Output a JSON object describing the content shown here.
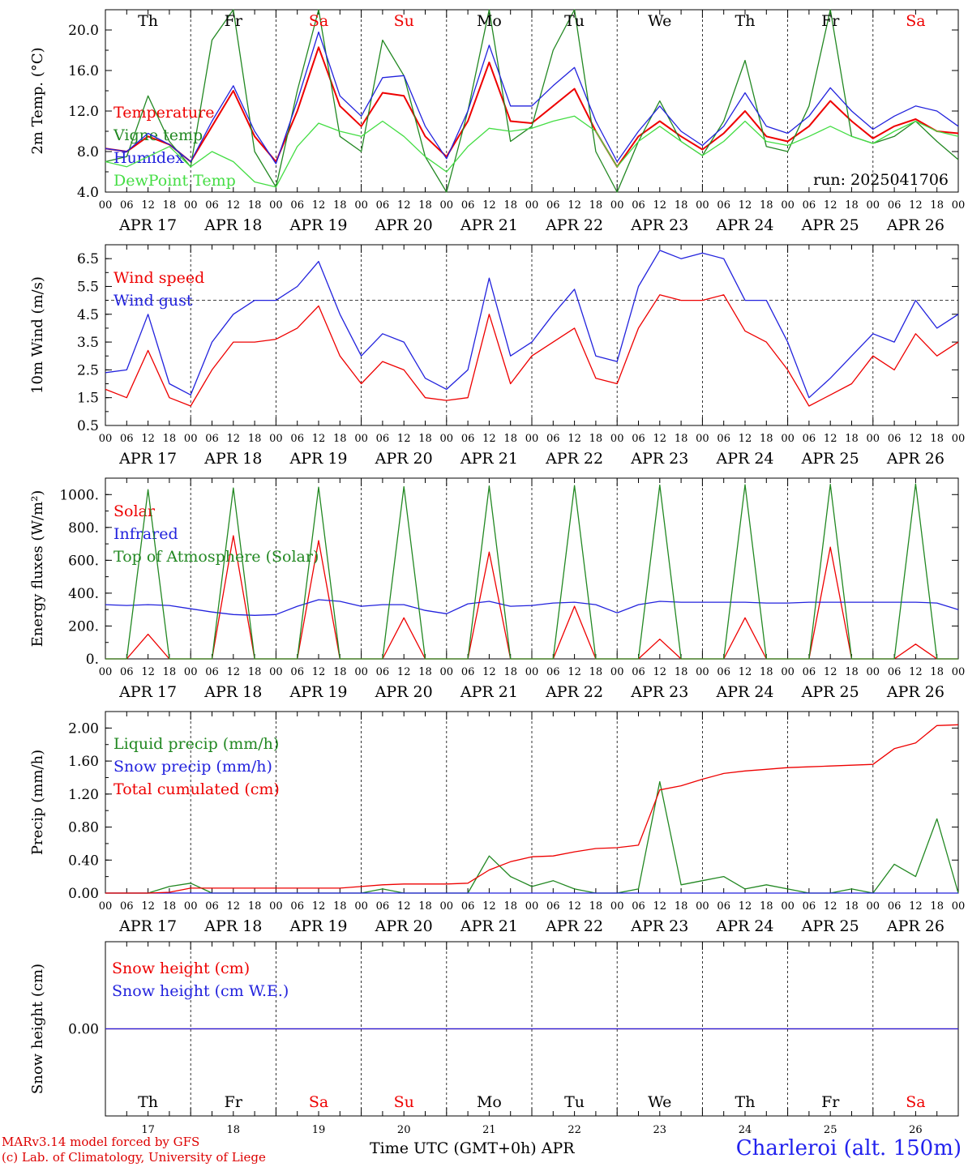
{
  "chart_data": [
    {
      "type": "line",
      "ylabel": "2m Temp. (°C)",
      "ylim": [
        4.0,
        22.0
      ],
      "yticks": [
        "4.0",
        "8.0",
        "12.0",
        "16.0",
        "20.0"
      ],
      "ytick_values": [
        4,
        8,
        12,
        16,
        20
      ],
      "annotation": "run: 2025041706",
      "x_hours": [
        0,
        6,
        12,
        18,
        24,
        30,
        36,
        42,
        48,
        54,
        60,
        66,
        72,
        78,
        84,
        90,
        96,
        102,
        108,
        114,
        120,
        126,
        132,
        138,
        144,
        150,
        156,
        162,
        168,
        174,
        180,
        186,
        192,
        198,
        204,
        210,
        216,
        222,
        228,
        234,
        240
      ],
      "series": [
        {
          "name": "Temperature",
          "color": "#ee0000",
          "values": [
            8.3,
            8.0,
            9.5,
            8.7,
            7.0,
            10.5,
            14.0,
            9.5,
            7.0,
            12.0,
            18.3,
            12.5,
            10.5,
            13.8,
            13.5,
            9.5,
            7.5,
            11.0,
            16.8,
            11.0,
            10.8,
            12.5,
            14.2,
            10.0,
            6.5,
            9.5,
            11.0,
            9.5,
            8.2,
            9.8,
            12.0,
            9.5,
            9.0,
            10.5,
            13.0,
            11.0,
            9.3,
            10.5,
            11.2,
            10.0,
            9.8
          ]
        },
        {
          "name": "Vigne temp",
          "color": "#228822",
          "values": [
            7.0,
            7.5,
            13.5,
            9.0,
            6.5,
            19.0,
            22.0,
            8.0,
            4.5,
            14.0,
            22.0,
            9.5,
            8.0,
            19.0,
            15.5,
            7.5,
            4.0,
            12.0,
            22.0,
            9.0,
            10.5,
            18.0,
            22.0,
            8.0,
            3.5,
            9.0,
            13.0,
            9.0,
            7.6,
            11.0,
            17.0,
            8.5,
            8.0,
            12.5,
            22.0,
            9.5,
            8.8,
            9.5,
            11.0,
            9.0,
            7.2
          ]
        },
        {
          "name": "Humidex",
          "color": "#2222dd",
          "values": [
            8.3,
            8.0,
            9.8,
            8.7,
            7.0,
            11.0,
            14.5,
            10.0,
            6.8,
            13.0,
            19.8,
            13.5,
            11.5,
            15.3,
            15.5,
            10.5,
            7.3,
            12.0,
            18.5,
            12.5,
            12.5,
            14.5,
            16.3,
            11.0,
            7.0,
            10.0,
            12.5,
            10.0,
            8.6,
            10.5,
            13.8,
            10.5,
            9.8,
            11.5,
            14.3,
            12.0,
            10.2,
            11.5,
            12.5,
            12.0,
            10.5
          ]
        },
        {
          "name": "DewPoint Temp",
          "color": "#44dd44",
          "values": [
            7.0,
            6.5,
            7.5,
            8.5,
            6.5,
            8.0,
            7.0,
            5.0,
            4.5,
            8.5,
            10.8,
            10.0,
            9.5,
            11.0,
            9.5,
            7.5,
            6.0,
            8.5,
            10.3,
            10.0,
            10.3,
            11.0,
            11.5,
            10.0,
            6.5,
            9.0,
            10.5,
            9.0,
            7.6,
            9.0,
            11.0,
            9.0,
            8.6,
            9.5,
            10.5,
            9.5,
            8.8,
            10.0,
            11.0,
            10.0,
            9.5
          ]
        }
      ]
    },
    {
      "type": "line",
      "ylabel": "10m Wind (m/s)",
      "ylim": [
        0.5,
        7.0
      ],
      "yticks": [
        "0.5",
        "1.5",
        "2.5",
        "3.5",
        "4.5",
        "5.5",
        "6.5"
      ],
      "ytick_values": [
        0.5,
        1.5,
        2.5,
        3.5,
        4.5,
        5.5,
        6.5
      ],
      "reference_line": 5.0,
      "x_hours": [
        0,
        6,
        12,
        18,
        24,
        30,
        36,
        42,
        48,
        54,
        60,
        66,
        72,
        78,
        84,
        90,
        96,
        102,
        108,
        114,
        120,
        126,
        132,
        138,
        144,
        150,
        156,
        162,
        168,
        174,
        180,
        186,
        192,
        198,
        204,
        210,
        216,
        222,
        228,
        234,
        240
      ],
      "series": [
        {
          "name": "Wind speed",
          "color": "#ee0000",
          "values": [
            1.8,
            1.5,
            3.2,
            1.5,
            1.2,
            2.5,
            3.5,
            3.5,
            3.6,
            4.0,
            4.8,
            3.0,
            2.0,
            2.8,
            2.5,
            1.5,
            1.4,
            1.5,
            4.5,
            2.0,
            3.0,
            3.5,
            4.0,
            2.2,
            2.0,
            4.0,
            5.2,
            5.0,
            5.0,
            5.2,
            3.9,
            3.5,
            2.5,
            1.2,
            1.6,
            2.0,
            3.0,
            2.5,
            3.8,
            3.0,
            3.5
          ]
        },
        {
          "name": "Wind gust",
          "color": "#2222dd",
          "values": [
            2.4,
            2.5,
            4.5,
            2.0,
            1.6,
            3.5,
            4.5,
            5.0,
            5.0,
            5.5,
            6.4,
            4.5,
            3.0,
            3.8,
            3.5,
            2.2,
            1.8,
            2.5,
            5.8,
            3.0,
            3.5,
            4.5,
            5.4,
            3.0,
            2.8,
            5.5,
            6.8,
            6.5,
            6.7,
            6.5,
            5.0,
            5.0,
            3.5,
            1.5,
            2.2,
            3.0,
            3.8,
            3.5,
            5.0,
            4.0,
            4.5
          ]
        }
      ]
    },
    {
      "type": "line",
      "ylabel": "Energy fluxes (W/m²)",
      "ylim": [
        0,
        1100
      ],
      "yticks": [
        "0.",
        "200.",
        "400.",
        "600.",
        "800.",
        "1000."
      ],
      "ytick_values": [
        0,
        200,
        400,
        600,
        800,
        1000
      ],
      "x_hours": [
        0,
        6,
        12,
        18,
        24,
        30,
        36,
        42,
        48,
        54,
        60,
        66,
        72,
        78,
        84,
        90,
        96,
        102,
        108,
        114,
        120,
        126,
        132,
        138,
        144,
        150,
        156,
        162,
        168,
        174,
        180,
        186,
        192,
        198,
        204,
        210,
        216,
        222,
        228,
        234,
        240
      ],
      "series": [
        {
          "name": "Solar",
          "color": "#ee0000",
          "values": [
            0,
            0,
            150,
            0,
            0,
            0,
            750,
            0,
            0,
            0,
            720,
            0,
            0,
            0,
            250,
            0,
            0,
            0,
            650,
            0,
            0,
            0,
            320,
            0,
            0,
            0,
            120,
            0,
            0,
            0,
            250,
            0,
            0,
            0,
            680,
            0,
            0,
            0,
            90,
            0,
            0
          ]
        },
        {
          "name": "Infrared",
          "color": "#2222dd",
          "values": [
            330,
            325,
            330,
            325,
            305,
            285,
            270,
            265,
            270,
            320,
            360,
            350,
            320,
            330,
            330,
            295,
            275,
            335,
            350,
            320,
            325,
            340,
            345,
            330,
            280,
            330,
            350,
            345,
            345,
            345,
            345,
            340,
            340,
            345,
            345,
            345,
            345,
            345,
            345,
            340,
            300
          ]
        },
        {
          "name": "Top of Atmosphere (Solar)",
          "color": "#228822",
          "values": [
            0,
            0,
            1030,
            0,
            0,
            0,
            1040,
            0,
            0,
            0,
            1045,
            0,
            0,
            0,
            1048,
            0,
            0,
            0,
            1052,
            0,
            0,
            0,
            1055,
            0,
            0,
            0,
            1058,
            0,
            0,
            0,
            1060,
            0,
            0,
            0,
            1062,
            0,
            0,
            0,
            1065,
            0,
            0
          ]
        }
      ]
    },
    {
      "type": "line",
      "ylabel": "Precip (mm/h)",
      "ylim": [
        0.0,
        2.2
      ],
      "yticks": [
        "0.00",
        "0.40",
        "0.80",
        "1.20",
        "1.60",
        "2.00"
      ],
      "ytick_values": [
        0,
        0.4,
        0.8,
        1.2,
        1.6,
        2.0
      ],
      "x_hours": [
        0,
        6,
        12,
        18,
        24,
        30,
        36,
        42,
        48,
        54,
        60,
        66,
        72,
        78,
        84,
        90,
        96,
        102,
        108,
        114,
        120,
        126,
        132,
        138,
        144,
        150,
        156,
        162,
        168,
        174,
        180,
        186,
        192,
        198,
        204,
        210,
        216,
        222,
        228,
        234,
        240
      ],
      "series": [
        {
          "name": "Liquid precip (mm/h)",
          "color": "#228822",
          "values": [
            0,
            0,
            0,
            0.08,
            0.12,
            0,
            0,
            0,
            0,
            0,
            0,
            0,
            0,
            0.05,
            0,
            0,
            0,
            0,
            0.45,
            0.2,
            0.08,
            0.15,
            0.05,
            0,
            0,
            0.05,
            1.35,
            0.1,
            0.15,
            0.2,
            0.05,
            0.1,
            0.05,
            0,
            0,
            0.05,
            0,
            0.35,
            0.2,
            0.9,
            0
          ]
        },
        {
          "name": "Snow precip (mm/h)",
          "color": "#2222dd",
          "values": [
            0,
            0,
            0,
            0,
            0,
            0,
            0,
            0,
            0,
            0,
            0,
            0,
            0,
            0,
            0,
            0,
            0,
            0,
            0,
            0,
            0,
            0,
            0,
            0,
            0,
            0,
            0,
            0,
            0,
            0,
            0,
            0,
            0,
            0,
            0,
            0,
            0,
            0,
            0,
            0,
            0
          ]
        },
        {
          "name": "Total cumulated (cm)",
          "color": "#ee0000",
          "values": [
            0,
            0,
            0,
            0.01,
            0.06,
            0.06,
            0.06,
            0.06,
            0.06,
            0.06,
            0.06,
            0.06,
            0.08,
            0.1,
            0.11,
            0.11,
            0.11,
            0.12,
            0.28,
            0.38,
            0.44,
            0.45,
            0.5,
            0.54,
            0.55,
            0.58,
            1.25,
            1.3,
            1.38,
            1.45,
            1.48,
            1.5,
            1.52,
            1.53,
            1.54,
            1.55,
            1.56,
            1.75,
            1.82,
            2.03,
            2.04
          ]
        }
      ]
    },
    {
      "type": "line",
      "ylabel": "Snow height (cm)",
      "ylim": [
        -1,
        1
      ],
      "yticks": [
        "0.00"
      ],
      "ytick_values": [
        0
      ],
      "x_hours": [
        0,
        240
      ],
      "series": [
        {
          "name": "Snow height (cm)",
          "color": "#ee0000",
          "values": [
            0,
            0
          ]
        },
        {
          "name": "Snow height (cm W.E.)",
          "color": "#2222dd",
          "values": [
            0,
            0
          ]
        }
      ]
    }
  ],
  "day_labels": [
    "Th",
    "Fr",
    "Sa",
    "Su",
    "Mo",
    "Tu",
    "We",
    "Th",
    "Fr",
    "Sa"
  ],
  "day_label_colors": [
    "#000000",
    "#000000",
    "#ee0000",
    "#ee0000",
    "#000000",
    "#000000",
    "#000000",
    "#000000",
    "#000000",
    "#ee0000"
  ],
  "date_labels": [
    "APR 17",
    "APR 18",
    "APR 19",
    "APR 20",
    "APR 21",
    "APR 22",
    "APR 23",
    "APR 24",
    "APR 25",
    "APR 26"
  ],
  "hour_labels": [
    "00",
    "06",
    "12",
    "18"
  ],
  "final_hour_label": "00",
  "day_numbers": [
    "17",
    "18",
    "19",
    "20",
    "21",
    "22",
    "23",
    "24",
    "25",
    "26"
  ],
  "footer": {
    "credit_line1": "MARv3.14 model forced by GFS",
    "credit_line2": "(c) Lab. of Climatology, University of Liege",
    "xaxis_label": "Time UTC (GMT+0h) APR",
    "station": "Charleroi (alt. 150m)"
  }
}
